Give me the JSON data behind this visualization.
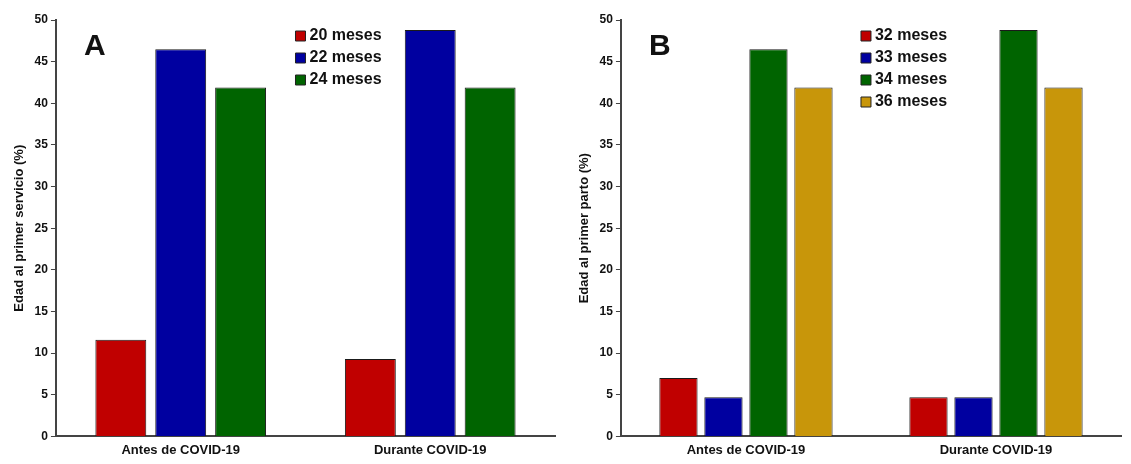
{
  "chart_data": [
    {
      "type": "bar",
      "ylabel": "Edad al primer servicio (%)",
      "annotations": [
        "A"
      ],
      "categories": [
        "Antes de COVID-19",
        "Durante COVID-19"
      ],
      "series": [
        {
          "name": "20 meses",
          "color": "#c00000",
          "values": [
            11.6,
            9.3
          ]
        },
        {
          "name": "22 meses",
          "color": "#0000a0",
          "values": [
            46.5,
            48.8
          ]
        },
        {
          "name": "24 meses",
          "color": "#006400",
          "values": [
            41.9,
            41.9
          ]
        }
      ],
      "ylim": [
        0,
        50
      ],
      "yticks": [
        0,
        5,
        10,
        15,
        20,
        25,
        30,
        35,
        40,
        45,
        50
      ],
      "grid": false,
      "legend": "top"
    },
    {
      "type": "bar",
      "ylabel": "Edad al primer parto (%)",
      "annotations": [
        "B"
      ],
      "categories": [
        "Antes de COVID-19",
        "Durante COVID-19"
      ],
      "series": [
        {
          "name": "32 meses",
          "color": "#c00000",
          "values": [
            7.0,
            4.7
          ]
        },
        {
          "name": "33 meses",
          "color": "#0000a0",
          "values": [
            4.7,
            4.7
          ]
        },
        {
          "name": "34 meses",
          "color": "#006400",
          "values": [
            46.5,
            48.8
          ]
        },
        {
          "name": "36 meses",
          "color": "#c8960a",
          "values": [
            41.9,
            41.9
          ]
        }
      ],
      "ylim": [
        0,
        50
      ],
      "yticks": [
        0,
        5,
        10,
        15,
        20,
        25,
        30,
        35,
        40,
        45,
        50
      ],
      "grid": false,
      "legend": "top"
    }
  ]
}
